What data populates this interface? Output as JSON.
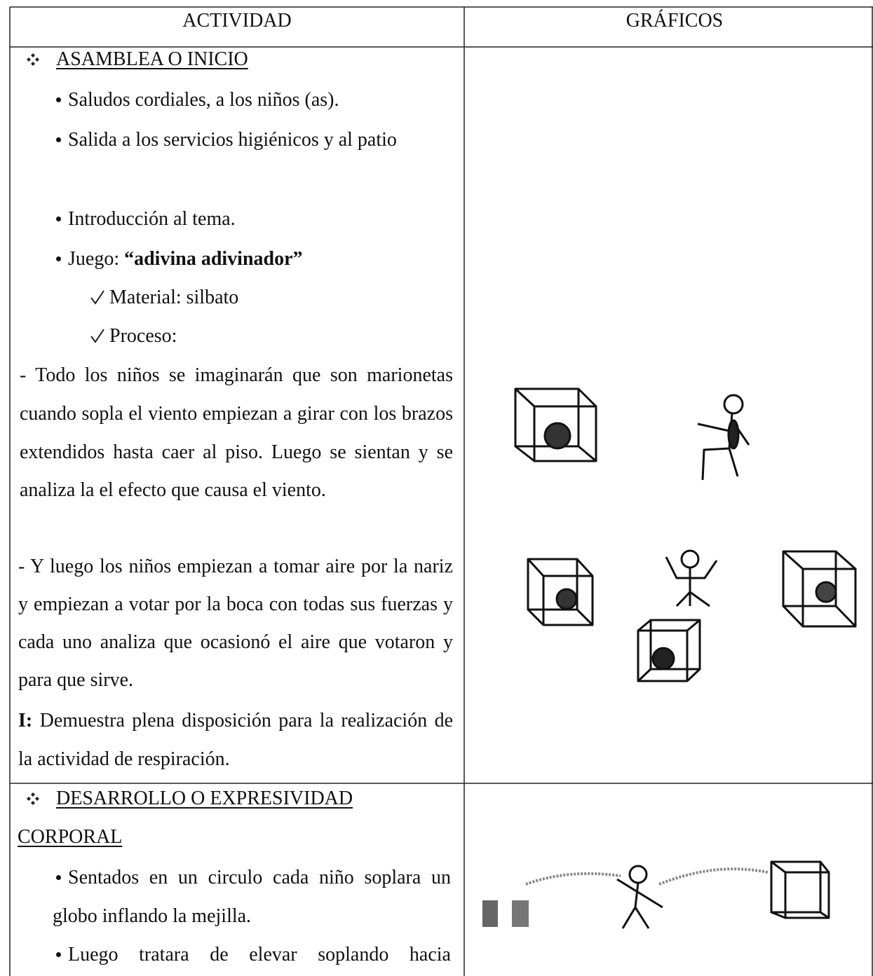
{
  "table": {
    "headers": [
      "ACTIVIDAD",
      "GRÁFICOS"
    ],
    "sections": [
      {
        "title": "ASAMBLEA O INICIO",
        "items": [
          {
            "text": "Saludos cordiales,  a los niños (as)."
          },
          {
            "text": "Salida a los servicios higiénicos y al patio"
          },
          {
            "text": "Introducción al tema."
          },
          {
            "text": "Juego: ",
            "bold": "“adivina adivinador”"
          }
        ],
        "checks": [
          "Material: silbato",
          "Proceso:"
        ],
        "paragraphs": [
          "- Todo los niños se imaginarán que son marionetas cuando sopla el viento  empiezan a girar con los brazos extendidos hasta caer al piso. Luego se sientan y se analiza la el efecto que causa el viento.",
          "- Y luego los niños empiezan a tomar aire por la nariz y empiezan a votar por la boca con todas sus fuerzas y cada uno analiza que ocasionó el aire que votaron y para que sirve."
        ],
        "indicator": {
          "label": "I:",
          "text": "Demuestra plena disposición para la realización de la actividad de  respiración."
        }
      },
      {
        "title": "DESARROLLO O EXPRESIVIDAD CORPORAL",
        "items": [
          {
            "text": "Sentados en un circulo cada niño soplara un globo inflando la mejilla."
          },
          {
            "text": "Luego tratara de elevar soplando hacia"
          }
        ]
      }
    ]
  }
}
